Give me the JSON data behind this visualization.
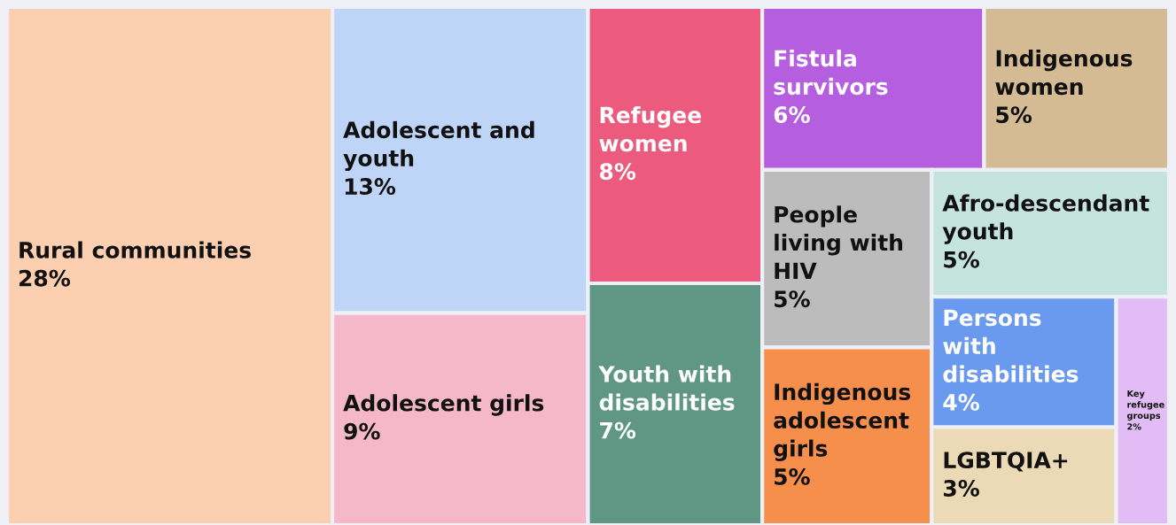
{
  "chart_data": {
    "type": "other",
    "categories": [
      "Rural communities",
      "Adolescent and youth",
      "Adolescent girls",
      "Refugee women",
      "Youth with disabilities",
      "Fistula survivors",
      "Indigenous women",
      "People living with HIV",
      "Indigenous adolescent girls",
      "Afro-descendant youth",
      "Persons with disabilities",
      "LGBTQIA+",
      "Key refugee groups"
    ],
    "values": [
      28,
      13,
      9,
      8,
      7,
      6,
      5,
      5,
      5,
      5,
      4,
      3,
      2
    ],
    "value_labels": [
      "28%",
      "13%",
      "9%",
      "8%",
      "7%",
      "6%",
      "5%",
      "5%",
      "5%",
      "5%",
      "4%",
      "3%",
      "2%"
    ],
    "colors": [
      "#fccfb0",
      "#bfd5f8",
      "#f5b8ca",
      "#ec5b7e",
      "#5f9684",
      "#b55ee0",
      "#d4bb94",
      "#bcbcbc",
      "#f78f4c",
      "#c4e4dd",
      "#6a9af0",
      "#ecd9b5",
      "#e2bdf5"
    ]
  }
}
